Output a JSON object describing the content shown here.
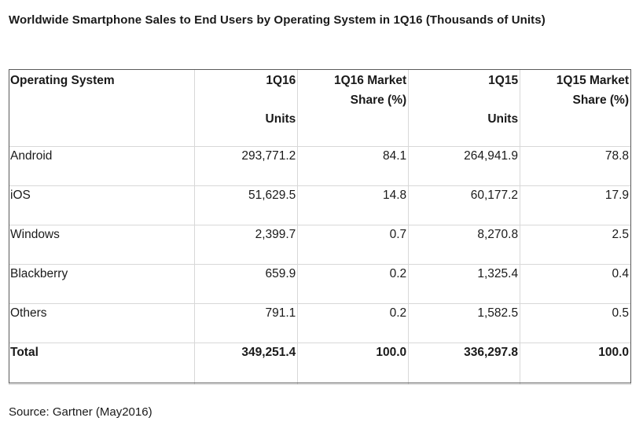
{
  "title": "Worldwide Smartphone Sales to End Users by Operating System in 1Q16 (Thousands of Units)",
  "source": "Source: Gartner (May2016)",
  "chart_data": {
    "type": "table",
    "title": "Worldwide Smartphone Sales to End Users by Operating System in 1Q16 (Thousands of Units)",
    "columns": [
      {
        "lines": [
          "Operating System"
        ]
      },
      {
        "lines": [
          "1Q16",
          "",
          "Units"
        ]
      },
      {
        "lines": [
          "1Q16 Market",
          "Share (%)"
        ]
      },
      {
        "lines": [
          "1Q15",
          "",
          "Units"
        ]
      },
      {
        "lines": [
          "1Q15 Market",
          "Share (%)"
        ]
      }
    ],
    "rows": [
      [
        "Android",
        "293,771.2",
        "84.1",
        "264,941.9",
        "78.8"
      ],
      [
        "iOS",
        "51,629.5",
        "14.8",
        "60,177.2",
        "17.9"
      ],
      [
        "Windows",
        "2,399.7",
        "0.7",
        "8,270.8",
        "2.5"
      ],
      [
        "Blackberry",
        "659.9",
        "0.2",
        "1,325.4",
        "0.4"
      ],
      [
        "Others",
        "791.1",
        "0.2",
        "1,582.5",
        "0.5"
      ]
    ],
    "total": [
      "Total",
      "349,251.4",
      "100.0",
      "336,297.8",
      "100.0"
    ]
  }
}
